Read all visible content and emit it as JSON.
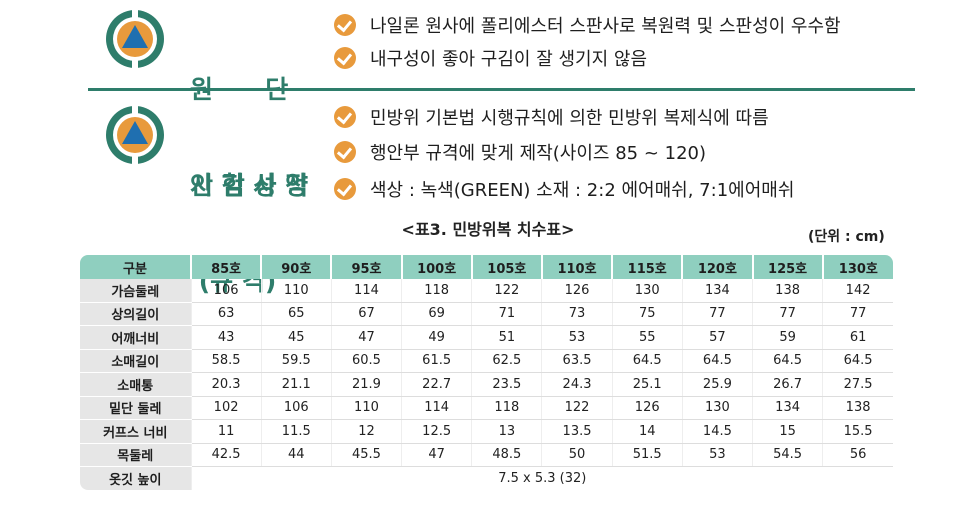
{
  "sections": [
    {
      "heading_lines": [
        "원      단",
        "시 험 성 적"
      ],
      "bullets": [
        "나일론 원사에 폴리에스터 스판사로 복원력 및 스판성이 우수함",
        "내구성이 좋아 구김이 잘 생기지 않음"
      ]
    },
    {
      "heading_lines": [
        "안 감 사 양",
        " (규 격)"
      ],
      "bullets": [
        "민방위 기본법 시행규칙에 의한 민방위 복제식에 따름",
        "행안부 규격에 맞게 제작(사이즈 85 ~ 120)",
        "색상 : 녹색(GREEN) 소재 : 2:2 에어매쉬, 7:1에어매쉬"
      ]
    }
  ],
  "colors": {
    "accent_green": "#2e7d6b",
    "accent_orange": "#e89a3c",
    "icon_triangle_blue": "#1f6fb0",
    "table_header": "#8fcfbf",
    "table_rowhead": "#e6e6e6"
  },
  "table": {
    "title": "<표3. 민방위복 치수표>",
    "unit": "(단위 : cm)",
    "header": [
      "구분",
      "85호",
      "90호",
      "95호",
      "100호",
      "105호",
      "110호",
      "115호",
      "120호",
      "125호",
      "130호"
    ],
    "rows": [
      {
        "label": "가슴둘레",
        "values": [
          "106",
          "110",
          "114",
          "118",
          "122",
          "126",
          "130",
          "134",
          "138",
          "142"
        ]
      },
      {
        "label": "상의길이",
        "values": [
          "63",
          "65",
          "67",
          "69",
          "71",
          "73",
          "75",
          "77",
          "77",
          "77"
        ]
      },
      {
        "label": "어깨너비",
        "values": [
          "43",
          "45",
          "47",
          "49",
          "51",
          "53",
          "55",
          "57",
          "59",
          "61"
        ]
      },
      {
        "label": "소매길이",
        "values": [
          "58.5",
          "59.5",
          "60.5",
          "61.5",
          "62.5",
          "63.5",
          "64.5",
          "64.5",
          "64.5",
          "64.5"
        ]
      },
      {
        "label": "소매통",
        "values": [
          "20.3",
          "21.1",
          "21.9",
          "22.7",
          "23.5",
          "24.3",
          "25.1",
          "25.9",
          "26.7",
          "27.5"
        ]
      },
      {
        "label": "밑단 둘레",
        "values": [
          "102",
          "106",
          "110",
          "114",
          "118",
          "122",
          "126",
          "130",
          "134",
          "138"
        ]
      },
      {
        "label": "커프스 너비",
        "values": [
          "11",
          "11.5",
          "12",
          "12.5",
          "13",
          "13.5",
          "14",
          "14.5",
          "15",
          "15.5"
        ]
      },
      {
        "label": "목둘레",
        "values": [
          "42.5",
          "44",
          "45.5",
          "47",
          "48.5",
          "50",
          "51.5",
          "53",
          "54.5",
          "56"
        ]
      }
    ],
    "collar_row": {
      "label": "옷깃 높이",
      "value": "7.5 x 5.3 (32)"
    }
  }
}
